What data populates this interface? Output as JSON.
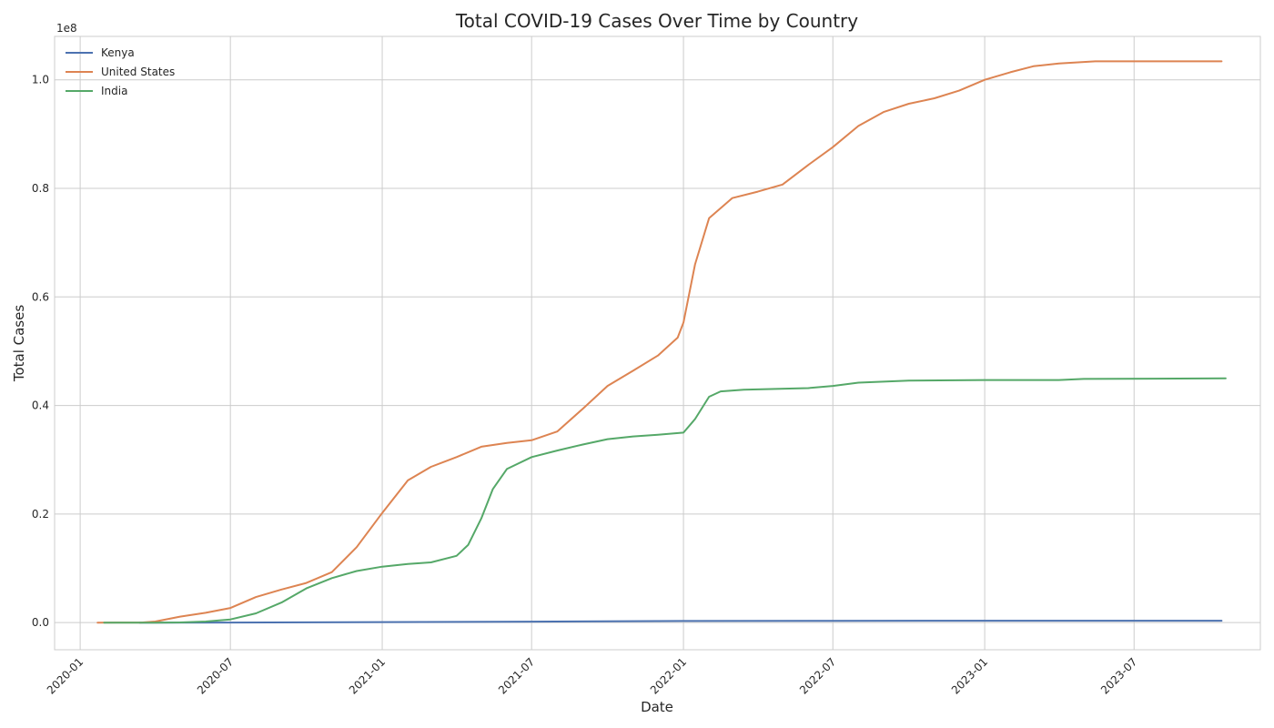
{
  "chart_data": {
    "type": "line",
    "title": "Total COVID-19 Cases Over Time by Country",
    "xlabel": "Date",
    "ylabel": "Total Cases",
    "y_offset_label": "1e8",
    "xlim": [
      "2019-12-01",
      "2023-12-01"
    ],
    "ylim": [
      -5000000,
      108000000
    ],
    "x_ticks": [
      "2020-01",
      "2020-07",
      "2021-01",
      "2021-07",
      "2022-01",
      "2022-07",
      "2023-01",
      "2023-07"
    ],
    "y_ticks": [
      0.0,
      0.2,
      0.4,
      0.6,
      0.8,
      1.0
    ],
    "y_tick_scale": 100000000,
    "grid": true,
    "legend_position": "top-left",
    "x_tick_rotation": 45,
    "series": [
      {
        "name": "Kenya",
        "color": "#4c72b0",
        "points": [
          [
            "2020-03-13",
            0
          ],
          [
            "2020-07-01",
            7000
          ],
          [
            "2021-01-01",
            97000
          ],
          [
            "2021-07-01",
            185000
          ],
          [
            "2022-01-01",
            295000
          ],
          [
            "2022-07-01",
            335000
          ],
          [
            "2023-01-01",
            342000
          ],
          [
            "2023-10-15",
            343000
          ]
        ]
      },
      {
        "name": "United States",
        "color": "#dd8452",
        "points": [
          [
            "2020-01-22",
            0
          ],
          [
            "2020-03-15",
            10000
          ],
          [
            "2020-04-01",
            200000
          ],
          [
            "2020-05-01",
            1100000
          ],
          [
            "2020-06-01",
            1800000
          ],
          [
            "2020-07-01",
            2700000
          ],
          [
            "2020-08-01",
            4700000
          ],
          [
            "2020-09-01",
            6100000
          ],
          [
            "2020-10-01",
            7300000
          ],
          [
            "2020-11-01",
            9300000
          ],
          [
            "2020-12-01",
            13900000
          ],
          [
            "2021-01-01",
            20200000
          ],
          [
            "2021-02-01",
            26200000
          ],
          [
            "2021-03-01",
            28700000
          ],
          [
            "2021-04-01",
            30500000
          ],
          [
            "2021-05-01",
            32400000
          ],
          [
            "2021-06-01",
            33100000
          ],
          [
            "2021-07-01",
            33600000
          ],
          [
            "2021-08-01",
            35200000
          ],
          [
            "2021-09-01",
            39400000
          ],
          [
            "2021-10-01",
            43600000
          ],
          [
            "2021-11-01",
            46400000
          ],
          [
            "2021-12-01",
            49200000
          ],
          [
            "2021-12-25",
            52500000
          ],
          [
            "2022-01-01",
            55300000
          ],
          [
            "2022-01-15",
            66000000
          ],
          [
            "2022-02-01",
            74500000
          ],
          [
            "2022-03-01",
            78200000
          ],
          [
            "2022-04-01",
            79400000
          ],
          [
            "2022-05-01",
            80700000
          ],
          [
            "2022-06-01",
            84300000
          ],
          [
            "2022-07-01",
            87600000
          ],
          [
            "2022-08-01",
            91500000
          ],
          [
            "2022-09-01",
            94100000
          ],
          [
            "2022-10-01",
            95600000
          ],
          [
            "2022-11-01",
            96600000
          ],
          [
            "2022-12-01",
            98000000
          ],
          [
            "2023-01-01",
            100000000
          ],
          [
            "2023-02-01",
            101400000
          ],
          [
            "2023-03-01",
            102500000
          ],
          [
            "2023-04-01",
            103000000
          ],
          [
            "2023-05-15",
            103400000
          ],
          [
            "2023-10-15",
            103400000
          ]
        ]
      },
      {
        "name": "India",
        "color": "#55a868",
        "points": [
          [
            "2020-01-30",
            0
          ],
          [
            "2020-04-01",
            1600
          ],
          [
            "2020-05-01",
            35000
          ],
          [
            "2020-06-01",
            190000
          ],
          [
            "2020-07-01",
            590000
          ],
          [
            "2020-08-01",
            1700000
          ],
          [
            "2020-09-01",
            3700000
          ],
          [
            "2020-10-01",
            6300000
          ],
          [
            "2020-11-01",
            8200000
          ],
          [
            "2020-12-01",
            9500000
          ],
          [
            "2021-01-01",
            10300000
          ],
          [
            "2021-02-01",
            10800000
          ],
          [
            "2021-03-01",
            11100000
          ],
          [
            "2021-04-01",
            12300000
          ],
          [
            "2021-04-15",
            14300000
          ],
          [
            "2021-05-01",
            19200000
          ],
          [
            "2021-05-15",
            24600000
          ],
          [
            "2021-06-01",
            28300000
          ],
          [
            "2021-07-01",
            30500000
          ],
          [
            "2021-08-01",
            31700000
          ],
          [
            "2021-09-01",
            32800000
          ],
          [
            "2021-10-01",
            33800000
          ],
          [
            "2021-11-01",
            34300000
          ],
          [
            "2021-12-01",
            34600000
          ],
          [
            "2022-01-01",
            35000000
          ],
          [
            "2022-01-15",
            37500000
          ],
          [
            "2022-02-01",
            41600000
          ],
          [
            "2022-02-15",
            42600000
          ],
          [
            "2022-03-15",
            42900000
          ],
          [
            "2022-06-01",
            43200000
          ],
          [
            "2022-07-01",
            43600000
          ],
          [
            "2022-08-01",
            44200000
          ],
          [
            "2022-10-01",
            44600000
          ],
          [
            "2023-01-01",
            44700000
          ],
          [
            "2023-04-01",
            44700000
          ],
          [
            "2023-05-01",
            44900000
          ],
          [
            "2023-10-20",
            45000000
          ]
        ]
      }
    ]
  }
}
